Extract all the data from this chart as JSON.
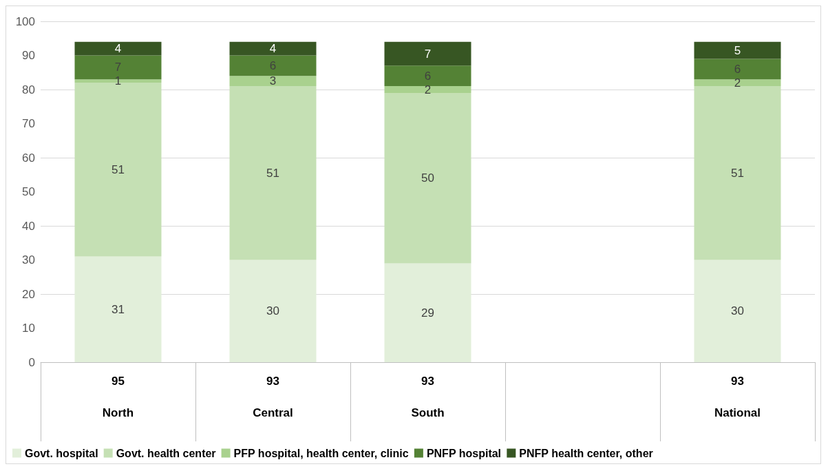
{
  "chart_data": {
    "type": "bar",
    "stacked": true,
    "categories": [
      "North",
      "Central",
      "South",
      null,
      "National"
    ],
    "series": [
      {
        "name": "Govt. hospital",
        "color": "#e2efda",
        "values": [
          31,
          30,
          29,
          null,
          30
        ]
      },
      {
        "name": "Govt. health center",
        "color": "#c5e0b4",
        "values": [
          51,
          51,
          50,
          null,
          51
        ]
      },
      {
        "name": "PFP hospital, health center, clinic",
        "color": "#a9d18e",
        "values": [
          1,
          3,
          2,
          null,
          2
        ]
      },
      {
        "name": "PNFP hospital",
        "color": "#548235",
        "values": [
          7,
          6,
          6,
          null,
          6
        ]
      },
      {
        "name": "PNFP health center, other",
        "color": "#375623",
        "values": [
          4,
          4,
          7,
          null,
          5
        ]
      }
    ],
    "totals": [
      "95",
      "93",
      "93",
      null,
      "93"
    ],
    "ylim": [
      0,
      100
    ],
    "yticks": [
      0,
      10,
      20,
      30,
      40,
      50,
      60,
      70,
      80,
      90,
      100
    ],
    "grid": "y",
    "legend": "bottom",
    "data_labels": true
  }
}
